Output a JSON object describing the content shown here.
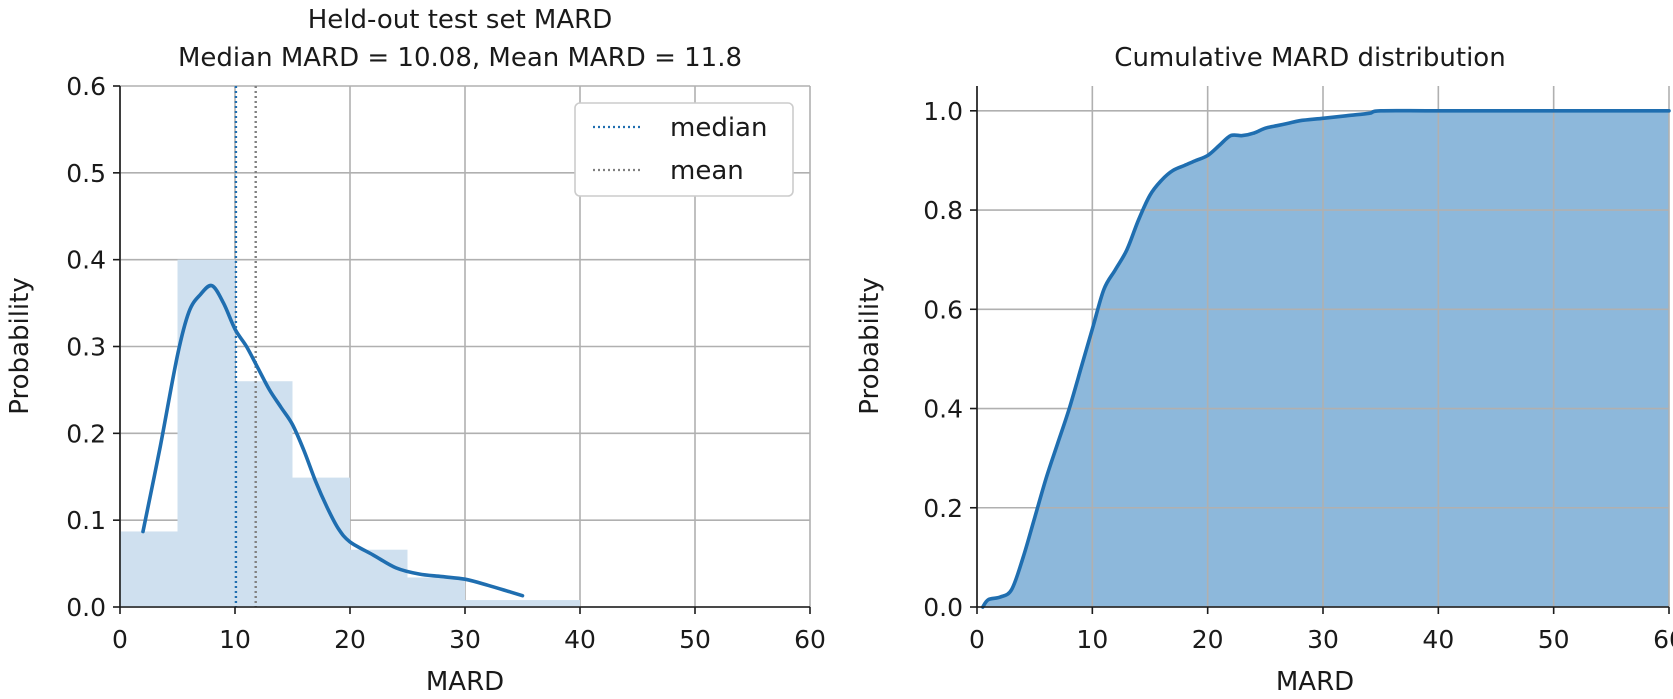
{
  "chart_data": [
    {
      "type": "histogram",
      "title": "Held-out test set MARD",
      "subtitle": "Median MARD = 10.08, Mean MARD = 11.8",
      "xlabel": "MARD",
      "ylabel": "Probability",
      "xlim": [
        0,
        60
      ],
      "ylim": [
        0,
        0.6
      ],
      "xticks": [
        "0",
        "10",
        "20",
        "30",
        "40",
        "50",
        "60"
      ],
      "yticks": [
        "0.0",
        "0.1",
        "0.2",
        "0.3",
        "0.4",
        "0.5",
        "0.6"
      ],
      "grid": true,
      "bar_color": "#cfe0ef",
      "line_color": "#1f6eb0",
      "mean_color": "#808080",
      "bins": [
        {
          "x0": 0,
          "x1": 5,
          "value": 0.087
        },
        {
          "x0": 5,
          "x1": 10,
          "value": 0.4
        },
        {
          "x0": 10,
          "x1": 15,
          "value": 0.26
        },
        {
          "x0": 15,
          "x1": 20,
          "value": 0.149
        },
        {
          "x0": 20,
          "x1": 25,
          "value": 0.066
        },
        {
          "x0": 25,
          "x1": 30,
          "value": 0.034
        },
        {
          "x0": 30,
          "x1": 35,
          "value": 0.008
        },
        {
          "x0": 35,
          "x1": 40,
          "value": 0.008
        }
      ],
      "kde": {
        "x": [
          2,
          3.5,
          5,
          6,
          7,
          8,
          9,
          10,
          11,
          12,
          13,
          14,
          15,
          16,
          17,
          18,
          19,
          20,
          22,
          24,
          26,
          28,
          30,
          32,
          34,
          35
        ],
        "y": [
          0.087,
          0.185,
          0.29,
          0.34,
          0.36,
          0.37,
          0.35,
          0.32,
          0.3,
          0.275,
          0.25,
          0.23,
          0.21,
          0.18,
          0.145,
          0.115,
          0.09,
          0.075,
          0.06,
          0.045,
          0.038,
          0.035,
          0.032,
          0.025,
          0.017,
          0.013
        ]
      },
      "reference_lines": [
        {
          "name": "median",
          "x": 10.08
        },
        {
          "name": "mean",
          "x": 11.8
        }
      ],
      "legend": {
        "position": "top-right",
        "entries": [
          "median",
          "mean"
        ]
      }
    },
    {
      "type": "area",
      "title": "Cumulative MARD distribution",
      "xlabel": "MARD",
      "ylabel": "Probability",
      "xlim": [
        0,
        60
      ],
      "ylim": [
        0,
        1.05
      ],
      "xticks": [
        "0",
        "10",
        "20",
        "30",
        "40",
        "50",
        "60"
      ],
      "yticks": [
        "0.0",
        "0.2",
        "0.4",
        "0.6",
        "0.8",
        "1.0"
      ],
      "grid": true,
      "fill_color": "#8db8db",
      "line_color": "#1f6eb0",
      "x": [
        0.5,
        1,
        2,
        3,
        4,
        5,
        6,
        7,
        8,
        9,
        10,
        11,
        12,
        13,
        14,
        15,
        16,
        17,
        18,
        19,
        20,
        21,
        22,
        23,
        24,
        25,
        26,
        27,
        28,
        30,
        32,
        34,
        35,
        40,
        50,
        60
      ],
      "y": [
        0.0,
        0.015,
        0.02,
        0.035,
        0.1,
        0.18,
        0.26,
        0.33,
        0.4,
        0.48,
        0.56,
        0.64,
        0.68,
        0.72,
        0.78,
        0.83,
        0.86,
        0.88,
        0.89,
        0.9,
        0.91,
        0.93,
        0.95,
        0.95,
        0.955,
        0.965,
        0.97,
        0.975,
        0.98,
        0.985,
        0.99,
        0.995,
        1.0,
        1.0,
        1.0,
        1.0
      ]
    }
  ]
}
